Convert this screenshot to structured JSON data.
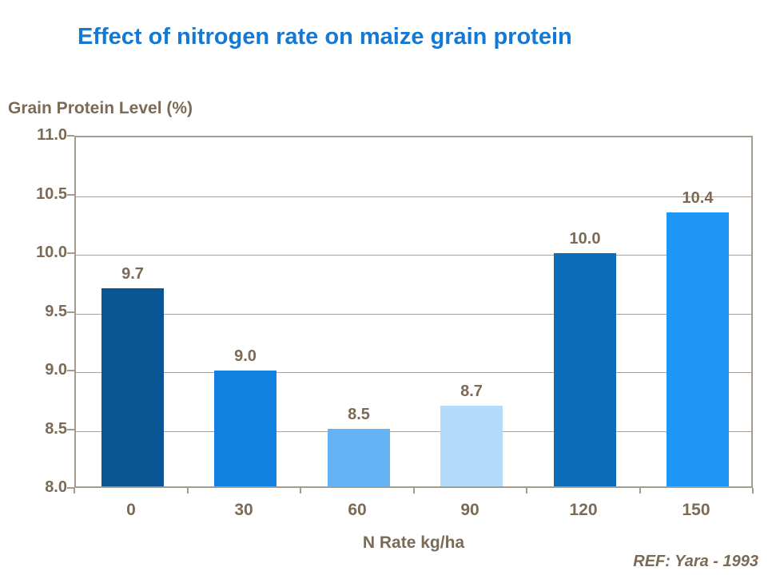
{
  "page": {
    "ref_note": "REF: Yara - 1993"
  },
  "colors": {
    "title_blue": "#1578d2",
    "text_brown": "#7b6a55",
    "gridline": "#aaa199",
    "axis_border": "#a49b91"
  },
  "chart_data": {
    "type": "bar",
    "title": "Effect of nitrogen rate on maize grain protein",
    "ylabel": "Grain Protein Level (%)",
    "xlabel": "N Rate kg/ha",
    "categories": [
      "0",
      "30",
      "60",
      "90",
      "120",
      "150"
    ],
    "values": [
      9.7,
      9.0,
      8.5,
      8.7,
      10.0,
      10.4
    ],
    "plot_values": [
      9.7,
      9.0,
      8.5,
      8.7,
      10.0,
      10.35
    ],
    "value_labels": [
      "9.7",
      "9.0",
      "8.5",
      "8.7",
      "10.0",
      "10.4"
    ],
    "bar_colors": [
      "#0a5694",
      "#1282e0",
      "#64b4f5",
      "#b4dcfa",
      "#0a6cb8",
      "#1e96f5"
    ],
    "ylim": [
      8.0,
      11.0
    ],
    "ytick_step": 0.5,
    "ytick_labels": [
      "8.0",
      "8.5",
      "9.0",
      "9.5",
      "10.0",
      "10.5",
      "11.0"
    ],
    "grid": true,
    "legend": "none"
  }
}
